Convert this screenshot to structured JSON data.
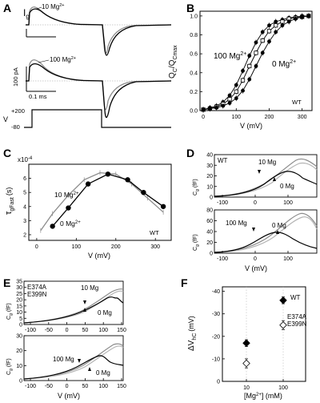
{
  "figure": {
    "panels": {
      "A": {
        "letter": "A",
        "ig_label": "I",
        "ig_sub": "g",
        "trace_top_label": "10 Mg",
        "trace_top_sup": "2+",
        "trace_bottom_label": "100 Mg",
        "trace_bottom_sup": "2+",
        "scale_current": "100 pA",
        "scale_time": "0.1 ms",
        "protocol_v": "V",
        "protocol_high": "+200",
        "protocol_low": "-80"
      },
      "B": {
        "letter": "B",
        "ylabel_q": "Q",
        "ylabel_sub1": "C",
        "ylabel_sep": "/Q",
        "ylabel_sub2": "Cmax",
        "xlabel": "V (mV)",
        "label_100": "100 Mg",
        "label_100_sup": "2+",
        "label_0": "0 Mg",
        "label_0_sup": "2+",
        "tag": "WT",
        "y_ticks": [
          "0.0",
          "0.2",
          "0.4",
          "0.6",
          "0.8",
          "1.0"
        ],
        "x_ticks": [
          "0",
          "100",
          "200",
          "300"
        ]
      },
      "C": {
        "letter": "C",
        "exponent": "x10",
        "exponent_sup": "-4",
        "ylabel_tau": "τ",
        "ylabel_sub": "gFast",
        "ylabel_unit": "(s)",
        "xlabel": "V (mV)",
        "label_10": "10 Mg",
        "label_10_sup": "2+",
        "label_0": "0 Mg",
        "label_0_sup": "2+",
        "tag": "WT",
        "y_ticks": [
          "2",
          "3",
          "4",
          "5",
          "6"
        ],
        "x_ticks": [
          "0",
          "100",
          "200",
          "300"
        ]
      },
      "D": {
        "letter": "D",
        "top": {
          "tag": "WT",
          "label_mg": "10 Mg",
          "label_0": "0 Mg",
          "y_ticks": [
            "0",
            "10",
            "20",
            "30",
            "40"
          ]
        },
        "bottom": {
          "label_mg": "100 Mg",
          "label_0": "0 Mg",
          "y_ticks": [
            "0",
            "20",
            "40",
            "60",
            "80"
          ]
        },
        "ylabel_c": "C",
        "ylabel_sub": "g",
        "ylabel_unit": "(fF)",
        "x_ticks": [
          "-100",
          "0",
          "100"
        ],
        "xlabel": "V (mV)"
      },
      "E": {
        "letter": "E",
        "top": {
          "tag1": "E374A",
          "tag2": "E399N",
          "label_mg": "10 Mg",
          "label_0": "0 Mg",
          "y_ticks": [
            "0",
            "5",
            "10",
            "15",
            "20",
            "25",
            "30",
            "35"
          ]
        },
        "bottom": {
          "label_mg": "100 Mg",
          "label_0": "0 Mg",
          "y_ticks": [
            "0",
            "10",
            "20",
            "30"
          ]
        },
        "ylabel_c": "C",
        "ylabel_sub": "g",
        "ylabel_unit": "(fF)",
        "x_ticks": [
          "-100",
          "-50",
          "0",
          "50",
          "100",
          "150"
        ],
        "xlabel": "V (mV)"
      },
      "F": {
        "letter": "F",
        "ylabel_delta": "ΔV",
        "ylabel_sub": "hC",
        "ylabel_unit": "(mV)",
        "xlabel_pre": "[Mg",
        "xlabel_sup": "2+",
        "xlabel_post": "] (mM)",
        "tag_wt": "WT",
        "tag_mut1": "E374A",
        "tag_mut2": "E399N",
        "y_ticks": [
          "0",
          "-10",
          "-20",
          "-30",
          "-40"
        ],
        "x_ticks": [
          "10",
          "100"
        ]
      }
    },
    "colors": {
      "ink": "#000000",
      "gray": "#8c8c8c",
      "light_gray": "#b4b4b4",
      "fill_gray": "#d8d8d8"
    }
  },
  "chart_data": [
    {
      "panel": "B",
      "type": "scatter",
      "xlabel": "V (mV)",
      "ylabel": "QC/QCmax",
      "xlim": [
        -10,
        330
      ],
      "ylim": [
        0,
        1.05
      ],
      "series": [
        {
          "name": "100 Mg2+",
          "x": [
            0,
            20,
            40,
            60,
            80,
            100,
            120,
            140,
            160,
            180,
            200,
            220,
            240,
            260,
            280,
            300,
            320
          ],
          "y": [
            0.01,
            0.03,
            0.05,
            0.09,
            0.16,
            0.27,
            0.42,
            0.58,
            0.72,
            0.83,
            0.9,
            0.94,
            0.96,
            0.98,
            0.99,
            1.0,
            1.0
          ]
        },
        {
          "x": [
            0,
            20,
            40,
            60,
            80,
            100,
            120,
            140,
            160,
            180,
            200,
            220,
            240,
            260,
            280,
            300,
            320
          ],
          "y": [
            0.01,
            0.02,
            0.04,
            0.07,
            0.12,
            0.2,
            0.32,
            0.47,
            0.61,
            0.74,
            0.84,
            0.9,
            0.94,
            0.97,
            0.98,
            0.99,
            1.0
          ]
        },
        {
          "name": "0 Mg2+",
          "x": [
            0,
            20,
            40,
            60,
            80,
            100,
            120,
            140,
            160,
            180,
            200,
            220,
            240,
            260,
            280,
            300,
            320
          ],
          "y": [
            0.01,
            0.02,
            0.03,
            0.05,
            0.08,
            0.13,
            0.21,
            0.33,
            0.47,
            0.61,
            0.73,
            0.83,
            0.9,
            0.94,
            0.97,
            0.99,
            1.0
          ]
        }
      ]
    },
    {
      "panel": "C",
      "type": "line",
      "xlabel": "V (mV)",
      "ylabel": "τgFast (s)",
      "xlim": [
        -20,
        340
      ],
      "ylim": [
        1.6,
        7.0
      ],
      "series": [
        {
          "name": "0 Mg2+",
          "x": [
            40,
            80,
            130,
            180,
            230,
            270,
            320
          ],
          "y": [
            2.6,
            3.9,
            5.6,
            6.3,
            5.9,
            5.0,
            4.0
          ]
        },
        {
          "name": "10 Mg2+",
          "x": [
            10,
            40,
            80,
            120,
            160,
            200,
            240,
            280,
            320
          ],
          "y": [
            2.3,
            3.5,
            4.8,
            5.9,
            6.4,
            6.3,
            5.6,
            4.6,
            3.6
          ]
        }
      ]
    },
    {
      "panel": "F",
      "type": "scatter",
      "xlabel": "[Mg2+] (mM)",
      "ylabel": "ΔVhC (mV)",
      "categories": [
        "10",
        "100"
      ],
      "ylim": [
        0,
        -40
      ],
      "series": [
        {
          "name": "WT",
          "values": [
            -17,
            -36
          ],
          "errors": [
            1.5,
            1.5
          ]
        },
        {
          "name": "E374A E399N",
          "values": [
            -8,
            -25
          ],
          "errors": [
            2,
            2
          ]
        }
      ]
    }
  ]
}
